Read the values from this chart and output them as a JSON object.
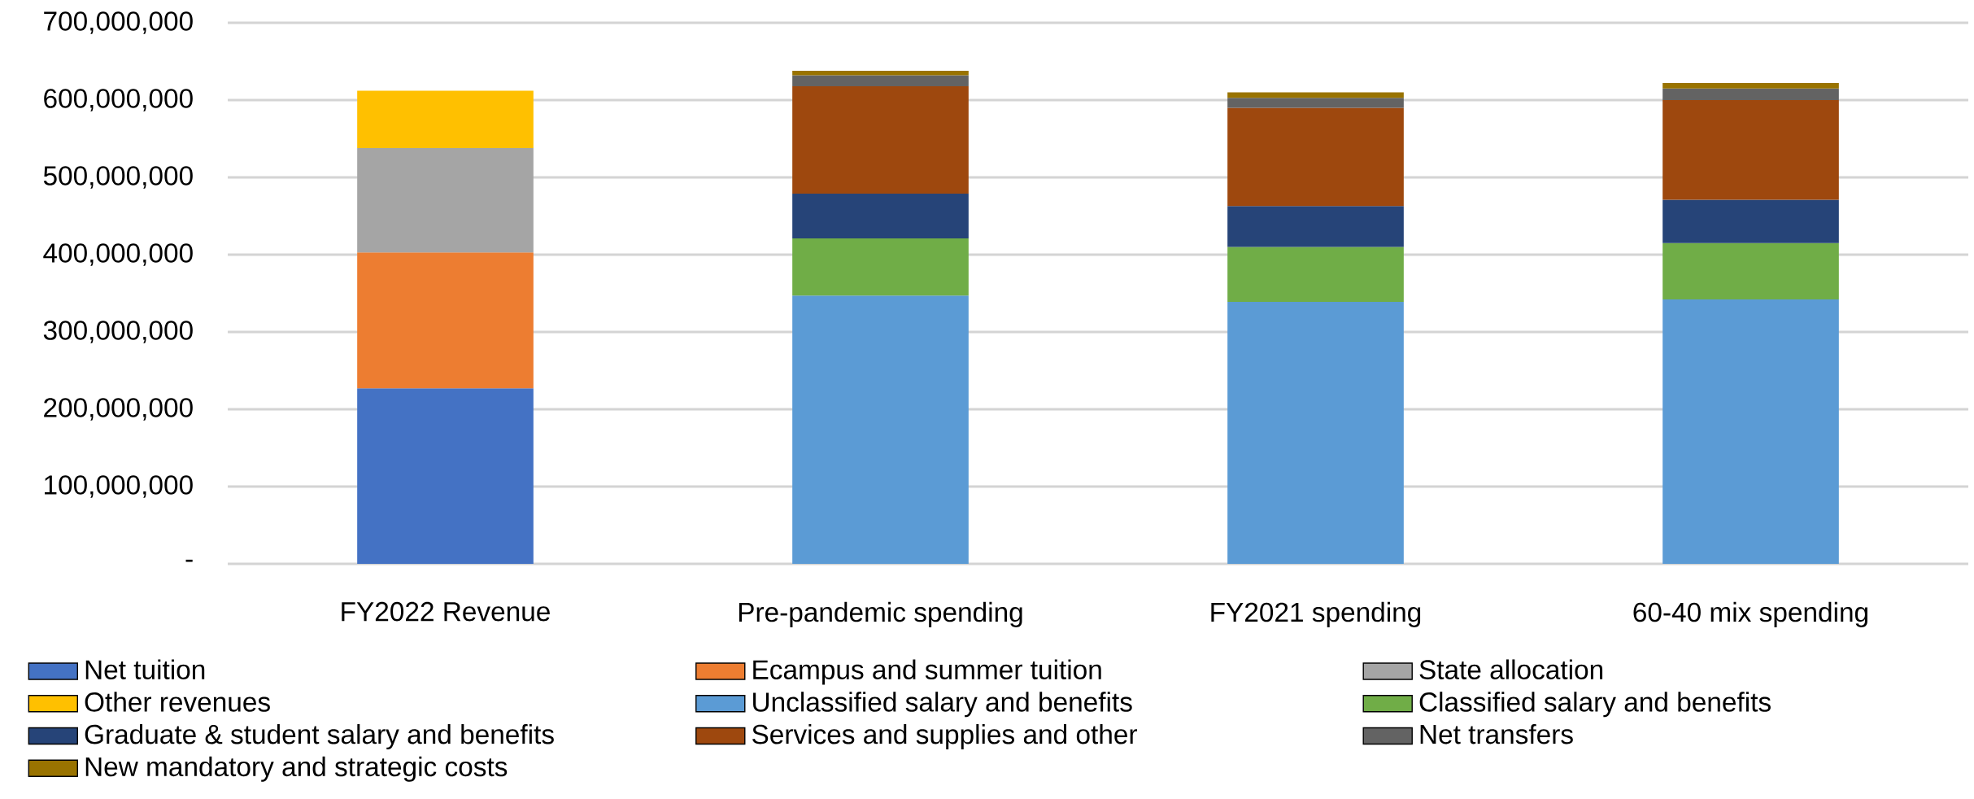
{
  "chart_data": {
    "type": "bar",
    "stacked": true,
    "categories": [
      "FY2022 Revenue",
      "Pre-pandemic spending",
      "FY2021 spending",
      "60-40 mix spending"
    ],
    "series": [
      {
        "name": "Net tuition",
        "color": "#4472c4",
        "values": [
          227000000,
          null,
          null,
          null
        ]
      },
      {
        "name": "Ecampus and summer tuition",
        "color": "#ed7d31",
        "values": [
          176000000,
          null,
          null,
          null
        ]
      },
      {
        "name": "State allocation",
        "color": "#a5a5a5",
        "values": [
          135000000,
          null,
          null,
          null
        ]
      },
      {
        "name": "Other revenues",
        "color": "#ffc000",
        "values": [
          74000000,
          null,
          null,
          null
        ]
      },
      {
        "name": "Unclassified salary and benefits",
        "color": "#5b9bd5",
        "values": [
          null,
          347000000,
          339000000,
          342000000
        ]
      },
      {
        "name": "Classified salary and benefits",
        "color": "#70ad47",
        "values": [
          null,
          74000000,
          71000000,
          73000000
        ]
      },
      {
        "name": "Graduate & student salary and benefits",
        "color": "#264478",
        "values": [
          null,
          58000000,
          53000000,
          56000000
        ]
      },
      {
        "name": "Services and supplies and other",
        "color": "#9e480e",
        "values": [
          null,
          139000000,
          127000000,
          129000000
        ]
      },
      {
        "name": "Net transfers",
        "color": "#636363",
        "values": [
          null,
          14000000,
          13000000,
          15000000
        ]
      },
      {
        "name": "New mandatory and strategic costs",
        "color": "#997300",
        "values": [
          null,
          6000000,
          7000000,
          7000000
        ]
      }
    ],
    "ylim": [
      0,
      700000000
    ],
    "yticks": [
      {
        "value": 0,
        "label": "-"
      },
      {
        "value": 100000000,
        "label": "100,000,000"
      },
      {
        "value": 200000000,
        "label": "200,000,000"
      },
      {
        "value": 300000000,
        "label": "300,000,000"
      },
      {
        "value": 400000000,
        "label": "400,000,000"
      },
      {
        "value": 500000000,
        "label": "500,000,000"
      },
      {
        "value": 600000000,
        "label": "600,000,000"
      },
      {
        "value": 700000000,
        "label": "700,000,000"
      }
    ],
    "grid": "y",
    "legend": "bottom"
  }
}
